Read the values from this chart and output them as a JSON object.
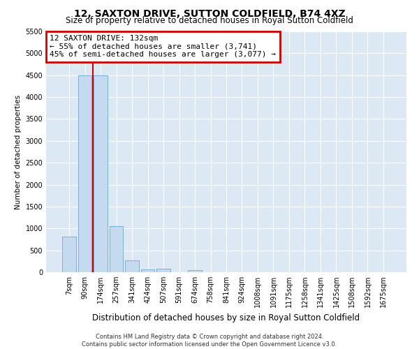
{
  "title": "12, SAXTON DRIVE, SUTTON COLDFIELD, B74 4XZ",
  "subtitle": "Size of property relative to detached houses in Royal Sutton Coldfield",
  "xlabel": "Distribution of detached houses by size in Royal Sutton Coldfield",
  "ylabel": "Number of detached properties",
  "footer_line1": "Contains HM Land Registry data © Crown copyright and database right 2024.",
  "footer_line2": "Contains public sector information licensed under the Open Government Licence v3.0.",
  "categories": [
    "7sqm",
    "90sqm",
    "174sqm",
    "257sqm",
    "341sqm",
    "424sqm",
    "507sqm",
    "591sqm",
    "674sqm",
    "758sqm",
    "841sqm",
    "924sqm",
    "1008sqm",
    "1091sqm",
    "1175sqm",
    "1258sqm",
    "1341sqm",
    "1425sqm",
    "1508sqm",
    "1592sqm",
    "1675sqm"
  ],
  "values": [
    820,
    4500,
    4500,
    1060,
    270,
    70,
    75,
    0,
    45,
    0,
    0,
    0,
    0,
    0,
    0,
    0,
    0,
    0,
    0,
    0,
    0
  ],
  "bar_color": "#c5d9ef",
  "bar_edge_color": "#7aafd4",
  "property_line_x": 1.5,
  "property_line_color": "#cc0000",
  "annotation_text": "12 SAXTON DRIVE: 132sqm\n← 55% of detached houses are smaller (3,741)\n45% of semi-detached houses are larger (3,077) →",
  "annotation_box_color": "#ffffff",
  "annotation_box_edge_color": "#cc0000",
  "ylim": [
    0,
    5500
  ],
  "yticks": [
    0,
    500,
    1000,
    1500,
    2000,
    2500,
    3000,
    3500,
    4000,
    4500,
    5000,
    5500
  ],
  "fig_bg_color": "#ffffff",
  "plot_bg_color": "#dce9f5",
  "grid_color": "#ffffff",
  "title_fontsize": 10,
  "subtitle_fontsize": 8.5,
  "xlabel_fontsize": 8.5,
  "ylabel_fontsize": 7.5,
  "tick_fontsize": 7,
  "footer_fontsize": 6,
  "annotation_fontsize": 8
}
